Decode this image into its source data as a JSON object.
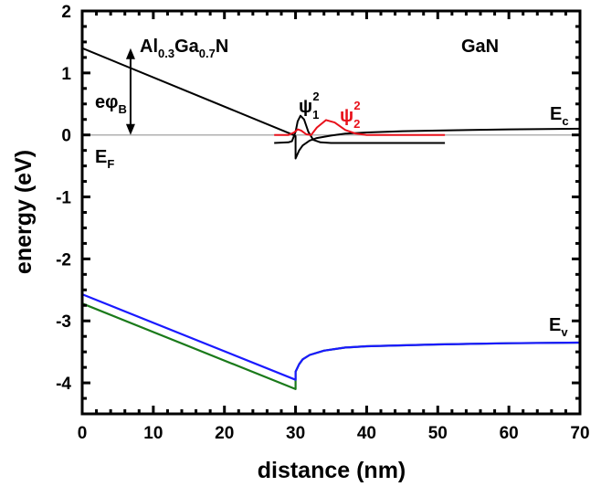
{
  "chart_data": {
    "type": "line",
    "xlabel": "distance (nm)",
    "ylabel": "energy (eV)",
    "xlim": [
      0,
      70
    ],
    "ylim": [
      -4.5,
      2
    ],
    "x_ticks": [
      0,
      10,
      20,
      30,
      40,
      50,
      60,
      70
    ],
    "y_ticks": [
      2,
      1,
      0,
      -1,
      -2,
      -3,
      -4
    ],
    "grid": false,
    "colors": {
      "axis": "#000000",
      "fermi": "#b0b0b0",
      "ec": "#000000",
      "psi1": "#000000",
      "psi2": "#e8101a",
      "ev_blue": "#1a1aff",
      "ev_green": "#1a7a1a",
      "left_edge": "#00008b"
    },
    "annotations": {
      "barrier_material": {
        "main": "Al",
        "sub1": "0.3",
        "mid": "Ga",
        "sub2": "0.7",
        "end": "N"
      },
      "channel_material": "GaN",
      "barrier_height": {
        "main": "eφ",
        "sub": "B"
      },
      "fermi": {
        "main": "E",
        "sub": "F"
      },
      "conduction": {
        "main": "E",
        "sub": "c"
      },
      "valence": {
        "main": "E",
        "sub": "v"
      },
      "psi1": {
        "main": "ψ",
        "sub": "1",
        "sup": "2"
      },
      "psi2": {
        "main": "ψ",
        "sub": "2",
        "sup": "2"
      }
    },
    "series": [
      {
        "id": "fermi",
        "x": [
          0,
          70
        ],
        "y": [
          0,
          0
        ]
      },
      {
        "id": "left-edge",
        "x": [
          0,
          0
        ],
        "y": [
          0,
          -2.57
        ]
      },
      {
        "id": "ec",
        "x": [
          0,
          29.7,
          30,
          30,
          30.5,
          31,
          32,
          33,
          35,
          37,
          40,
          45,
          50,
          60,
          70
        ],
        "y": [
          1.4,
          0.0,
          -0.02,
          -0.38,
          -0.25,
          -0.17,
          -0.09,
          -0.05,
          -0.01,
          0.02,
          0.04,
          0.06,
          0.07,
          0.09,
          0.1
        ]
      },
      {
        "id": "psi1",
        "x": [
          27,
          29,
          29.5,
          30,
          30.3,
          30.7,
          31.2,
          31.8,
          32.5,
          33.5,
          35,
          51
        ],
        "y": [
          -0.13,
          -0.12,
          -0.1,
          0.05,
          0.22,
          0.31,
          0.25,
          0.05,
          -0.08,
          -0.12,
          -0.13,
          -0.13
        ]
      },
      {
        "id": "psi2",
        "x": [
          27,
          29,
          29.8,
          30.3,
          30.8,
          31.5,
          32.2,
          33,
          34.3,
          35.5,
          37,
          38.5,
          40,
          51
        ],
        "y": [
          0,
          0,
          0.04,
          0.09,
          0.07,
          0.01,
          0.0,
          0.12,
          0.24,
          0.2,
          0.08,
          0.02,
          0,
          0
        ]
      },
      {
        "id": "ev-green",
        "x": [
          0,
          30,
          30,
          30.5,
          31,
          32,
          34,
          37,
          40,
          50,
          60,
          70
        ],
        "y": [
          -2.72,
          -4.1,
          -3.82,
          -3.7,
          -3.62,
          -3.55,
          -3.48,
          -3.43,
          -3.41,
          -3.38,
          -3.36,
          -3.35
        ]
      },
      {
        "id": "ev-blue",
        "x": [
          0,
          30,
          30,
          30.5,
          31,
          32,
          34,
          37,
          40,
          50,
          60,
          70
        ],
        "y": [
          -2.57,
          -3.95,
          -3.82,
          -3.7,
          -3.62,
          -3.55,
          -3.48,
          -3.43,
          -3.41,
          -3.38,
          -3.36,
          -3.35
        ]
      }
    ],
    "arrow": {
      "x": 6.8,
      "y_from": 1.4,
      "y_to": 0
    }
  }
}
